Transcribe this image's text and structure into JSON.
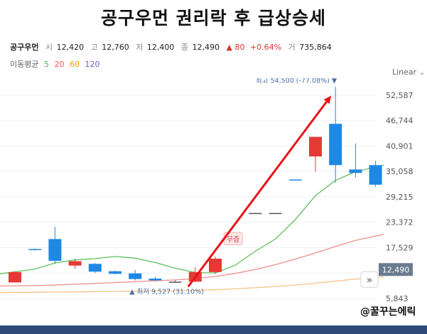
{
  "header": {
    "title": "공구우먼 권리락 후 급상승세"
  },
  "quote": {
    "name": "공구우먼",
    "open_label": "시",
    "open": "12,420",
    "high_label": "고",
    "high": "12,760",
    "low_label": "저",
    "low": "12,400",
    "close_label": "종",
    "close": "12,490",
    "change_arrow": "▲",
    "change": "80",
    "change_pct": "+0.64%",
    "volume_label": "거",
    "volume": "735,864"
  },
  "ma_legend": {
    "label": "이동평균",
    "periods": [
      {
        "label": "5",
        "color": "#4caf50"
      },
      {
        "label": "20",
        "color": "#ef5350"
      },
      {
        "label": "60",
        "color": "#ff9800"
      },
      {
        "label": "120",
        "color": "#7e57c2"
      }
    ]
  },
  "scale": {
    "type_label": "Linear",
    "chevron_icon": "chevron-down-icon"
  },
  "watermark": "@꿀꾸는에릭",
  "chart_data": {
    "type": "candlestick",
    "y_ticks": [
      5843,
      11686,
      17529,
      23372,
      29215,
      35058,
      40901,
      46744,
      52587
    ],
    "y_tick_labels": [
      "5,843",
      "",
      "17,529",
      "23,372",
      "29,215",
      "35,058",
      "40,901",
      "46,744",
      "52,587"
    ],
    "ylim": [
      4200,
      56500
    ],
    "grid": true,
    "candles": [
      {
        "o": 9527,
        "h": 12000,
        "l": 9527,
        "c": 11900
      },
      {
        "o": 17200,
        "h": 17300,
        "l": 16900,
        "c": 17000
      },
      {
        "o": 19500,
        "h": 22300,
        "l": 13800,
        "c": 14500
      },
      {
        "o": 13400,
        "h": 15000,
        "l": 12700,
        "c": 14400
      },
      {
        "o": 13800,
        "h": 14000,
        "l": 11700,
        "c": 12000
      },
      {
        "o": 12100,
        "h": 12200,
        "l": 11400,
        "c": 11500
      },
      {
        "o": 11600,
        "h": 12400,
        "l": 10000,
        "c": 10300
      },
      {
        "o": 10400,
        "h": 10800,
        "l": 9900,
        "c": 10000
      },
      {
        "o": 9700,
        "h": 10000,
        "l": 9527,
        "c": 9700
      },
      {
        "o": 9700,
        "h": 13000,
        "l": 9600,
        "c": 11900
      },
      {
        "o": 11900,
        "h": 15500,
        "l": 11500,
        "c": 15000
      },
      null,
      {
        "o": 25500,
        "h": 25500,
        "l": 25400,
        "c": 25500
      },
      {
        "o": 25500,
        "h": 25500,
        "l": 25400,
        "c": 25500
      },
      {
        "o": 33200,
        "h": 33200,
        "l": 33000,
        "c": 33100
      },
      {
        "o": 38500,
        "h": 43000,
        "l": 35000,
        "c": 43000
      },
      {
        "o": 46000,
        "h": 54500,
        "l": 32500,
        "c": 36500
      },
      {
        "o": 35500,
        "h": 41500,
        "l": 33700,
        "c": 34700
      },
      {
        "o": 36500,
        "h": 37500,
        "l": 31500,
        "c": 32000
      }
    ],
    "up_color": "#e53935",
    "down_color": "#1e88e5",
    "flat_color": "#555555",
    "ma_series": [
      {
        "name": "5",
        "color": "#5cc15c",
        "values": [
          11500,
          12600,
          14000,
          14700,
          15000,
          15500,
          15100,
          14100,
          12800,
          11800,
          11700,
          13500,
          16700,
          19500,
          24000,
          29500,
          33000,
          35000,
          36500
        ]
      },
      {
        "name": "20",
        "color": "#ef8f8f",
        "values": [
          8700,
          8800,
          8900,
          9100,
          9300,
          9500,
          9700,
          9900,
          10100,
          10400,
          10900,
          11600,
          12500,
          13600,
          14900,
          16300,
          17800,
          19200,
          20600
        ]
      },
      {
        "name": "60",
        "color": "#f5c28a",
        "values": [
          7200,
          7250,
          7300,
          7350,
          7400,
          7450,
          7500,
          7550,
          7600,
          7700,
          7850,
          8050,
          8300,
          8600,
          8950,
          9350,
          9800,
          10300,
          10800
        ]
      }
    ],
    "annotations": {
      "high": {
        "label": "최고",
        "value_text": "54,500 (-77.08%)",
        "marker": "▼",
        "value": 54500,
        "candle": 16
      },
      "low": {
        "label": "최저",
        "value_text": "9,527 (31.10%)",
        "marker": "▲",
        "value": 9527,
        "candle": 8
      },
      "badge": {
        "text": "무증",
        "value": 19500,
        "candle": 11
      }
    },
    "trend_arrow": {
      "from": {
        "candle": 9,
        "value": 9527
      },
      "to": {
        "candle": 16,
        "value": 52500
      },
      "color": "#e8131a"
    },
    "last_price": {
      "text": "12,490",
      "value": 12490,
      "badge_color": "#6b7a8f"
    },
    "scroll_button_icon": "double-chevron-right-icon"
  }
}
